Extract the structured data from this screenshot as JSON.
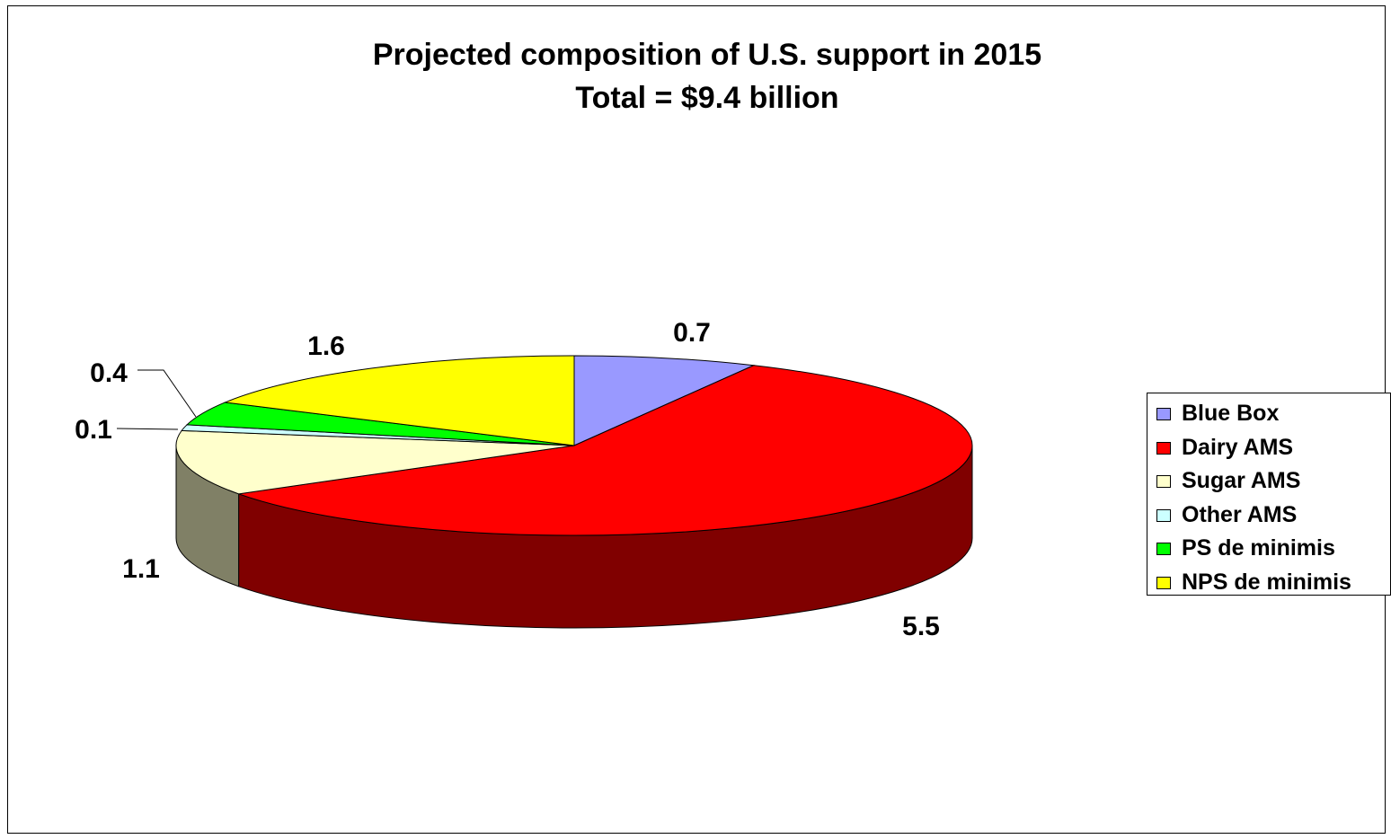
{
  "chart_data": {
    "type": "pie",
    "title": "Projected composition of U.S. support in 2015",
    "subtitle": "Total = $9.4 billion",
    "categories": [
      "Blue Box",
      "Dairy AMS",
      "Sugar AMS",
      "Other AMS",
      "PS de minimis",
      "NPS de minimis"
    ],
    "values": [
      0.7,
      5.5,
      1.1,
      0.1,
      0.4,
      1.6
    ],
    "data_labels": [
      "0.7",
      "5.5",
      "1.1",
      "0.1",
      "0.4",
      "1.6"
    ],
    "colors": [
      "#9999FF",
      "#FF0000",
      "#FFFFCC",
      "#CCFFFF",
      "#00FF00",
      "#FFFF00"
    ],
    "side_colors": [
      "#5A5A99",
      "#800000",
      "#808066",
      "#7A9999",
      "#009900",
      "#999900"
    ],
    "legend_position": "right",
    "style": "3d"
  }
}
